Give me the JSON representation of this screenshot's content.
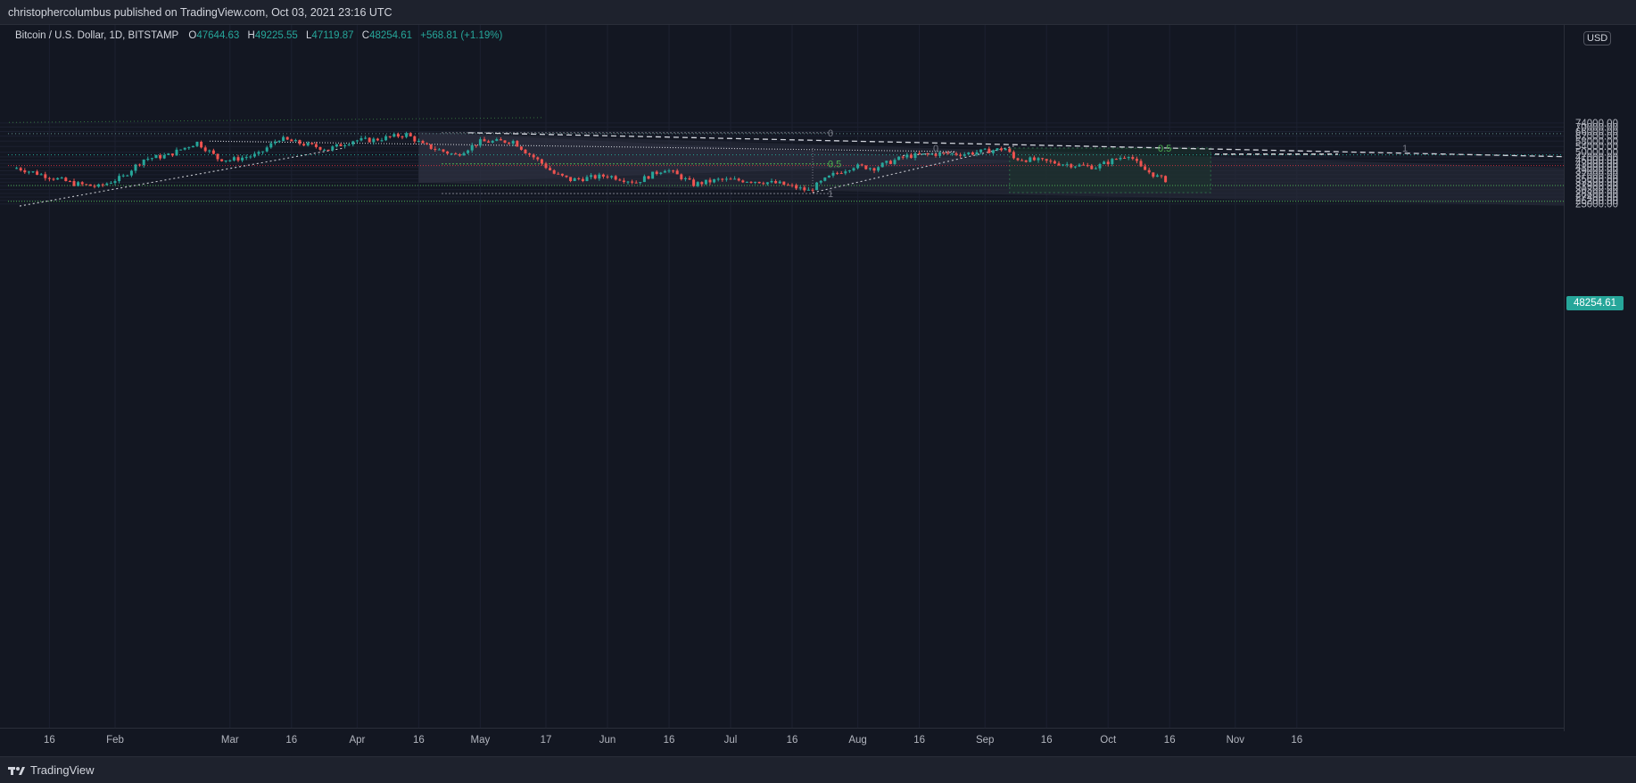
{
  "header": {
    "publisher_line": "christophercolumbus published on TradingView.com, Oct 03, 2021 23:16 UTC"
  },
  "legend": {
    "symbol": "Bitcoin / U.S. Dollar, 1D, BITSTAMP",
    "open_label": "O",
    "open_value": "47644.63",
    "high_label": "H",
    "high_value": "49225.55",
    "low_label": "L",
    "low_value": "47119.87",
    "close_label": "C",
    "close_value": "48254.61",
    "change": "+568.81 (+1.19%)"
  },
  "price_axis": {
    "currency": "USD",
    "current_price": "48254.61",
    "labels": [
      "74000.00",
      "70000.00",
      "66000.00",
      "62000.00",
      "58000.00",
      "54000.00",
      "50000.00",
      "47000.00",
      "45000.00",
      "43000.00",
      "41000.00",
      "39000.00",
      "37000.00",
      "35000.00",
      "33500.00",
      "31900.00",
      "30300.00",
      "28800.00",
      "27400.00",
      "26200.00",
      "25000.00"
    ]
  },
  "time_axis": {
    "labels": [
      "16",
      "Feb",
      "Mar",
      "16",
      "Apr",
      "16",
      "May",
      "17",
      "Jun",
      "16",
      "Jul",
      "16",
      "Aug",
      "16",
      "Sep",
      "16",
      "Oct",
      "16",
      "Nov",
      "16"
    ]
  },
  "fib_labels": {
    "upper_zero": "0",
    "upper_half": "0.5",
    "upper_one": "1",
    "lower_zero": "0",
    "lower_half": "0.5",
    "lower_one": "1"
  },
  "colors": {
    "background": "#131722",
    "up_candle": "#26a69a",
    "down_candle": "#ef5350",
    "fib_green": "#4caf50",
    "horizontal_red": "#f23645"
  },
  "footer": {
    "brand": "TradingView"
  },
  "chart_data": {
    "type": "candlestick",
    "symbol": "BTCUSD",
    "timeframe": "1D",
    "exchange": "BITSTAMP",
    "scale": "log",
    "x_range": [
      "2021-01-06",
      "2021-11-29"
    ],
    "ylim": [
      24200,
      76000
    ],
    "current_price": 48254.61,
    "horizontal_levels": [
      64100,
      48254.61,
      41800,
      32000,
      25900
    ],
    "fib_upper": {
      "0": 64900,
      "0.5": 42800,
      "1": 28800
    },
    "fib_lower": {
      "0": 52900,
      "0.5": 52900,
      "1": 52900
    },
    "candles_anchors": [
      {
        "date": "2021-01-08",
        "close": 40500
      },
      {
        "date": "2021-01-15",
        "close": 36500
      },
      {
        "date": "2021-01-22",
        "close": 32800
      },
      {
        "date": "2021-01-28",
        "close": 31500
      },
      {
        "date": "2021-02-03",
        "close": 36000
      },
      {
        "date": "2021-02-08",
        "close": 45500
      },
      {
        "date": "2021-02-14",
        "close": 48000
      },
      {
        "date": "2021-02-21",
        "close": 57000
      },
      {
        "date": "2021-02-26",
        "close": 46000
      },
      {
        "date": "2021-03-01",
        "close": 45000
      },
      {
        "date": "2021-03-08",
        "close": 48500
      },
      {
        "date": "2021-03-13",
        "close": 60000
      },
      {
        "date": "2021-03-17",
        "close": 57000
      },
      {
        "date": "2021-03-25",
        "close": 52000
      },
      {
        "date": "2021-03-31",
        "close": 58500
      },
      {
        "date": "2021-04-05",
        "close": 59000
      },
      {
        "date": "2021-04-13",
        "close": 63500
      },
      {
        "date": "2021-04-17",
        "close": 55000
      },
      {
        "date": "2021-04-25",
        "close": 48000
      },
      {
        "date": "2021-05-01",
        "close": 57500
      },
      {
        "date": "2021-05-09",
        "close": 58000
      },
      {
        "date": "2021-05-12",
        "close": 50500
      },
      {
        "date": "2021-05-19",
        "close": 37500
      },
      {
        "date": "2021-05-23",
        "close": 34500
      },
      {
        "date": "2021-06-01",
        "close": 36500
      },
      {
        "date": "2021-06-08",
        "close": 33500
      },
      {
        "date": "2021-06-15",
        "close": 40000
      },
      {
        "date": "2021-06-22",
        "close": 32500
      },
      {
        "date": "2021-06-28",
        "close": 34500
      },
      {
        "date": "2021-07-06",
        "close": 34200
      },
      {
        "date": "2021-07-13",
        "close": 32800
      },
      {
        "date": "2021-07-20",
        "close": 29800
      },
      {
        "date": "2021-07-26",
        "close": 37000
      },
      {
        "date": "2021-07-31",
        "close": 41500
      },
      {
        "date": "2021-08-05",
        "close": 40500
      },
      {
        "date": "2021-08-13",
        "close": 47500
      },
      {
        "date": "2021-08-21",
        "close": 49000
      },
      {
        "date": "2021-08-27",
        "close": 49000
      },
      {
        "date": "2021-09-06",
        "close": 52500
      },
      {
        "date": "2021-09-08",
        "close": 46000
      },
      {
        "date": "2021-09-13",
        "close": 45000
      },
      {
        "date": "2021-09-21",
        "close": 42500
      },
      {
        "date": "2021-09-28",
        "close": 41000
      },
      {
        "date": "2021-10-06",
        "close": 48500
      },
      {
        "date": "2021-10-09",
        "close": 40500
      },
      {
        "date": "2021-10-13",
        "close": 36000
      },
      {
        "date": "2021-10-15",
        "close": 34500
      }
    ]
  }
}
